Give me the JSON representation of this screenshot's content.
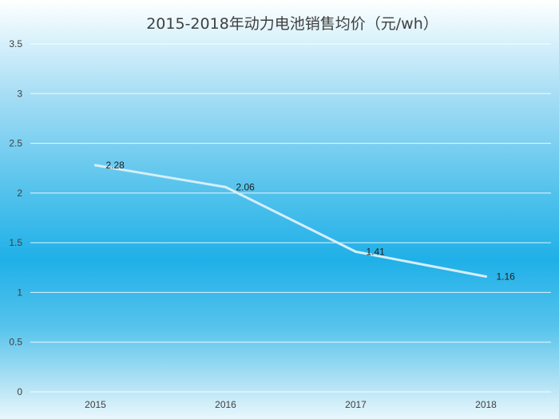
{
  "chart_data": {
    "type": "line",
    "title": "2015-2018年动力电池销售均价（元/wh）",
    "xlabel": "",
    "ylabel": "",
    "categories": [
      "2015",
      "2016",
      "2017",
      "2018"
    ],
    "series": [
      {
        "values": [
          2.28,
          2.06,
          1.41,
          1.16
        ]
      }
    ],
    "data_labels": [
      "2.28",
      "2.06",
      "1.41",
      "1.16"
    ],
    "ylim": [
      0,
      3.5
    ],
    "yticks": [
      "0",
      "0.5",
      "1",
      "1.5",
      "2",
      "2.5",
      "3",
      "3.5"
    ],
    "grid": true,
    "legend": "none",
    "colors": {
      "line": "#d6eef9",
      "grid": "#ffffff",
      "text": "#404040"
    }
  }
}
